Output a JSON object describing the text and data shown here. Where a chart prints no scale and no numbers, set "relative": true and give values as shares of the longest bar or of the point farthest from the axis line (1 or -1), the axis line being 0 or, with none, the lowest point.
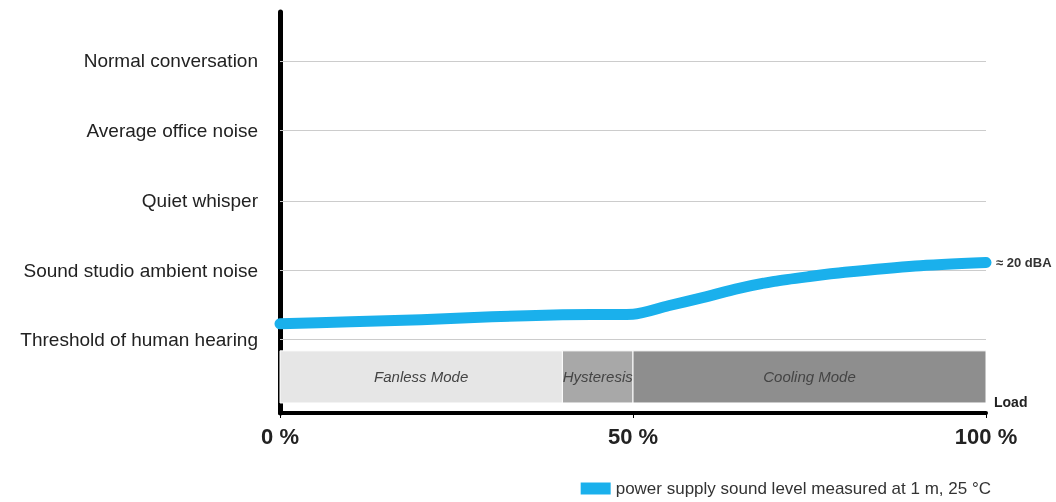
{
  "chart_data": {
    "type": "line",
    "xlabel": "Load",
    "relative": true,
    "x": [
      0,
      10,
      20,
      30,
      40,
      50,
      55,
      60,
      65,
      70,
      75,
      80,
      90,
      100
    ],
    "series": [
      {
        "name": "power supply sound level measured at 1 m, 25 °C",
        "color": "#1ab0ec",
        "values": [
          0.593,
          0.606,
          0.62,
          0.639,
          0.653,
          0.657,
          0.713,
          0.769,
          0.829,
          0.875,
          0.907,
          0.935,
          0.977,
          1
        ]
      }
    ],
    "xlim": [
      0,
      100
    ],
    "xticks": [
      {
        "value": 0,
        "label": "0 %"
      },
      {
        "value": 50,
        "label": "50 %"
      },
      {
        "value": 100,
        "label": "100 %"
      }
    ],
    "ref_lines": [
      {
        "axis": "y",
        "value": 0.486,
        "label": "Threshold of human hearing",
        "color": "#cccccc"
      },
      {
        "axis": "y",
        "value": 0.949,
        "label": "Sound studio ambient noise",
        "color": "#cccccc"
      },
      {
        "axis": "y",
        "value": 1.412,
        "label": "Quiet whisper",
        "color": "#cccccc"
      },
      {
        "axis": "y",
        "value": 1.875,
        "label": "Average office noise",
        "color": "#cccccc"
      },
      {
        "axis": "y",
        "value": 2.338,
        "label": "Normal conversation",
        "color": "#cccccc"
      }
    ],
    "bands": [
      {
        "axis": "x",
        "from": 0,
        "to": 40,
        "label": "Fanless Mode",
        "color": "#e6e6e6"
      },
      {
        "axis": "x",
        "from": 40,
        "to": 50,
        "label": "Hysteresis",
        "color": "#a8a8a8"
      },
      {
        "axis": "x",
        "from": 50,
        "to": 100,
        "label": "Cooling Mode",
        "color": "#8e8e8e"
      }
    ],
    "annotations": [
      {
        "text": "≈ 20 dBA",
        "x": 100,
        "y": 1
      }
    ],
    "legend": "bottom right",
    "line_style": "solid"
  }
}
